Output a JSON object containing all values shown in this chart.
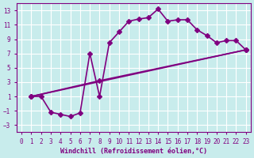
{
  "title": "",
  "xlabel": "Windchill (Refroidissement éolien,°C)",
  "ylabel": "",
  "bg_color": "#c8ecec",
  "line_color": "#800080",
  "grid_color": "#ffffff",
  "xlim": [
    -0.5,
    23.5
  ],
  "ylim": [
    -4,
    14
  ],
  "yticks": [
    -3,
    -1,
    1,
    3,
    5,
    7,
    9,
    11,
    13
  ],
  "xticks": [
    0,
    1,
    2,
    3,
    4,
    5,
    6,
    7,
    8,
    9,
    10,
    11,
    12,
    13,
    14,
    15,
    16,
    17,
    18,
    19,
    20,
    21,
    22,
    23
  ],
  "series1_x": [
    1,
    2,
    3,
    4,
    5,
    6,
    7,
    8,
    9,
    10,
    11,
    12,
    13,
    14,
    15,
    16,
    17,
    18,
    19,
    20,
    21,
    22,
    23
  ],
  "series1_y": [
    1.0,
    1.0,
    -1.2,
    -1.5,
    -1.8,
    -1.3,
    7.0,
    1.0,
    8.5,
    10.0,
    11.5,
    11.8,
    12.0,
    13.2,
    11.5,
    11.7,
    11.7,
    10.3,
    9.5,
    8.5,
    8.8,
    8.8,
    7.5
  ],
  "series2_x": [
    1,
    23
  ],
  "series2_y": [
    1.0,
    7.5
  ],
  "series3_x": [
    1,
    8,
    23
  ],
  "series3_y": [
    1.0,
    3.2,
    7.5
  ],
  "markersize": 3,
  "linewidth": 1.2
}
